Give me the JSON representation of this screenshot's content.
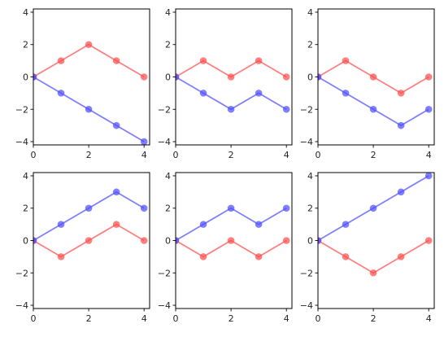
{
  "chart_data": [
    {
      "type": "line",
      "xlim": [
        0,
        4.2
      ],
      "ylim": [
        -4.2,
        4.2
      ],
      "xticks": [
        "0",
        "2",
        "4"
      ],
      "yticks": [
        "4",
        "2",
        "0",
        "−2",
        "−4"
      ],
      "grid": false,
      "series": [
        {
          "color": "#ff4d4d",
          "x": [
            0,
            1,
            2,
            3,
            4
          ],
          "y": [
            0,
            1,
            2,
            1,
            0
          ]
        },
        {
          "color": "#4d4dff",
          "x": [
            0,
            1,
            2,
            3,
            4
          ],
          "y": [
            0,
            -1,
            -2,
            -3,
            -4
          ]
        }
      ]
    },
    {
      "type": "line",
      "xlim": [
        0,
        4.2
      ],
      "ylim": [
        -4.2,
        4.2
      ],
      "xticks": [
        "0",
        "2",
        "4"
      ],
      "yticks": [
        "4",
        "2",
        "0",
        "−2",
        "−4"
      ],
      "grid": false,
      "series": [
        {
          "color": "#ff4d4d",
          "x": [
            0,
            1,
            2,
            3,
            4
          ],
          "y": [
            0,
            1,
            0,
            1,
            0
          ]
        },
        {
          "color": "#4d4dff",
          "x": [
            0,
            1,
            2,
            3,
            4
          ],
          "y": [
            0,
            -1,
            -2,
            -1,
            -2
          ]
        }
      ]
    },
    {
      "type": "line",
      "xlim": [
        0,
        4.2
      ],
      "ylim": [
        -4.2,
        4.2
      ],
      "xticks": [
        "0",
        "2",
        "4"
      ],
      "yticks": [
        "4",
        "2",
        "0",
        "−2",
        "−4"
      ],
      "grid": false,
      "series": [
        {
          "color": "#ff4d4d",
          "x": [
            0,
            1,
            2,
            3,
            4
          ],
          "y": [
            0,
            1,
            0,
            -1,
            0
          ]
        },
        {
          "color": "#4d4dff",
          "x": [
            0,
            1,
            2,
            3,
            4
          ],
          "y": [
            0,
            -1,
            -2,
            -3,
            -2
          ]
        }
      ]
    },
    {
      "type": "line",
      "xlim": [
        0,
        4.2
      ],
      "ylim": [
        -4.2,
        4.2
      ],
      "xticks": [
        "0",
        "2",
        "4"
      ],
      "yticks": [
        "4",
        "2",
        "0",
        "−2",
        "−4"
      ],
      "grid": false,
      "series": [
        {
          "color": "#ff4d4d",
          "x": [
            0,
            1,
            2,
            3,
            4
          ],
          "y": [
            0,
            -1,
            0,
            1,
            0
          ]
        },
        {
          "color": "#4d4dff",
          "x": [
            0,
            1,
            2,
            3,
            4
          ],
          "y": [
            0,
            1,
            2,
            3,
            2
          ]
        }
      ]
    },
    {
      "type": "line",
      "xlim": [
        0,
        4.2
      ],
      "ylim": [
        -4.2,
        4.2
      ],
      "xticks": [
        "0",
        "2",
        "4"
      ],
      "yticks": [
        "4",
        "2",
        "0",
        "−2",
        "−4"
      ],
      "grid": false,
      "series": [
        {
          "color": "#ff4d4d",
          "x": [
            0,
            1,
            2,
            3,
            4
          ],
          "y": [
            0,
            -1,
            0,
            -1,
            0
          ]
        },
        {
          "color": "#4d4dff",
          "x": [
            0,
            1,
            2,
            3,
            4
          ],
          "y": [
            0,
            1,
            2,
            1,
            2
          ]
        }
      ]
    },
    {
      "type": "line",
      "xlim": [
        0,
        4.2
      ],
      "ylim": [
        -4.2,
        4.2
      ],
      "xticks": [
        "0",
        "2",
        "4"
      ],
      "yticks": [
        "4",
        "2",
        "0",
        "−2",
        "−4"
      ],
      "grid": false,
      "series": [
        {
          "color": "#ff4d4d",
          "x": [
            0,
            1,
            2,
            3,
            4
          ],
          "y": [
            0,
            -1,
            -2,
            -1,
            0
          ]
        },
        {
          "color": "#4d4dff",
          "x": [
            0,
            1,
            2,
            3,
            4
          ],
          "y": [
            0,
            1,
            2,
            3,
            4
          ]
        }
      ]
    }
  ]
}
